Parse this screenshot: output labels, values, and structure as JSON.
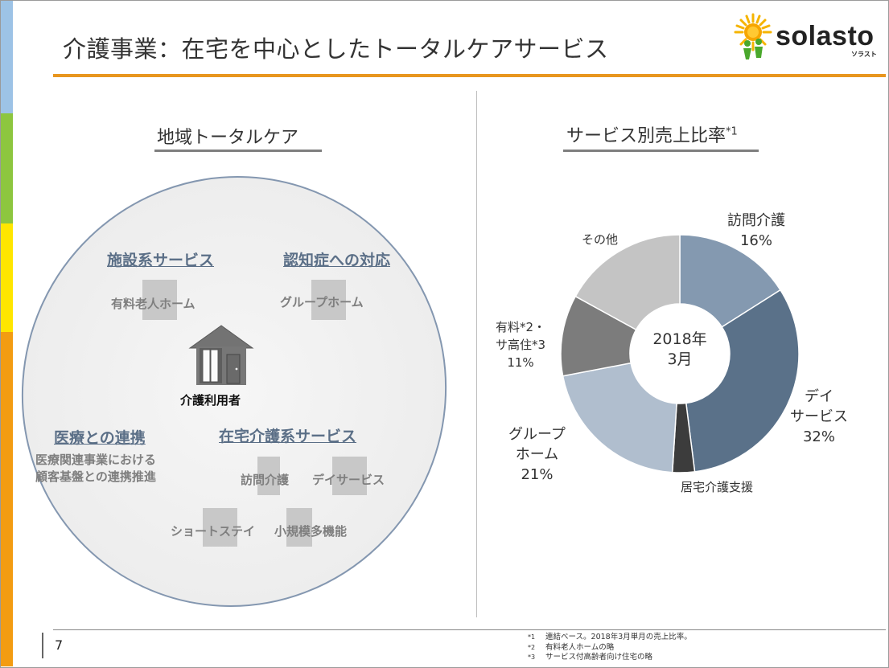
{
  "header": {
    "title": "介護事業：在宅を中心としたトータルケアサービス",
    "logo_text": "solasto",
    "logo_kana": "ソラスト"
  },
  "left": {
    "heading": "地域トータルケア",
    "center_user": "介護利用者",
    "categories": {
      "facility": "施設系サービス",
      "dementia": "認知症への対応",
      "medical": "医療との連携",
      "home": "在宅介護系サービス"
    },
    "services": {
      "nursing_home": "有料老人ホーム",
      "group_home": "グループホーム",
      "home_visit": "訪問介護",
      "day_service": "デイサービス",
      "short_stay": "ショートステイ",
      "small_multi": "小規模多機能"
    },
    "medical_note": [
      "医療関連事業における",
      "顧客基盤との連携推進"
    ]
  },
  "right": {
    "heading": "サービス別売上比率",
    "heading_sup": "*1",
    "center_label": [
      "2018年",
      "3月"
    ]
  },
  "chart_data": {
    "type": "pie",
    "style": "donut",
    "title": "サービス別売上比率*1",
    "center_text": "2018年3月",
    "slices": [
      {
        "name": "訪問介護",
        "value": 16,
        "label": "16%",
        "color": "#8499b0"
      },
      {
        "name": "デイサービス",
        "value": 32,
        "label": "32%",
        "color": "#5a7189"
      },
      {
        "name": "居宅介護支援",
        "value": 3,
        "label": "",
        "color": "#3c3c3c"
      },
      {
        "name": "グループホーム",
        "value": 21,
        "label": "21%",
        "color": "#b0bece"
      },
      {
        "name": "有料*2・サ高住*3",
        "value": 11,
        "label": "11%",
        "color": "#7c7c7c"
      },
      {
        "name": "その他",
        "value": 17,
        "label": "",
        "color": "#c4c4c4"
      }
    ]
  },
  "pie_labels": {
    "houmon": [
      "訪問介護",
      "16%"
    ],
    "day": [
      "デイ",
      "サービス",
      "32%"
    ],
    "kyotaku": "居宅介護支援",
    "group": [
      "グループ",
      "ホーム",
      "21%"
    ],
    "yuryo": [
      "有料*2・",
      "サ高住*3",
      "11%"
    ],
    "sonota": "その他"
  },
  "footer": {
    "page": "7",
    "notes": [
      {
        "mark": "*1",
        "text": "連結ベース。2018年3月単月の売上比率。"
      },
      {
        "mark": "*2",
        "text": "有料老人ホームの略"
      },
      {
        "mark": "*3",
        "text": "サービス付高齢者向け住宅の略"
      }
    ]
  },
  "colors": {
    "accent": "#e8961f",
    "category_text": "#5b6f87",
    "side_blue": "#9dc3e6",
    "side_green": "#8dc63f",
    "side_yellow": "#ffe600",
    "side_orange": "#f39c12"
  }
}
